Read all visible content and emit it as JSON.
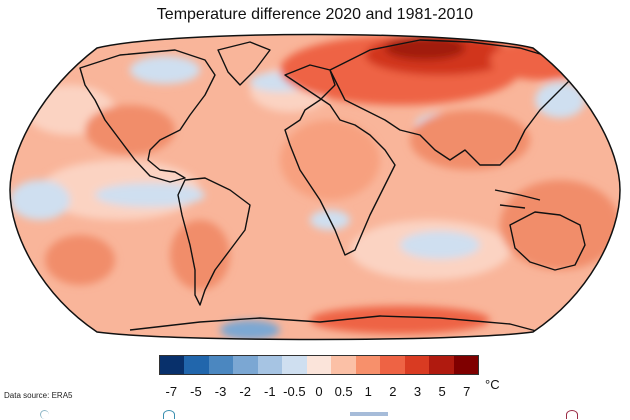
{
  "title": "Temperature difference 2020 and 1981-2010",
  "data_source": "Data source: ERA5",
  "legend": {
    "unit": "°C",
    "tick_labels": [
      "-7",
      "-5",
      "-3",
      "-2",
      "-1",
      "-0.5",
      "0",
      "0.5",
      "1",
      "2",
      "3",
      "5",
      "7"
    ],
    "colors": [
      "#08306b",
      "#2166ac",
      "#4b87c0",
      "#7ba7d3",
      "#a6c4e3",
      "#cfdff0",
      "#fbe4da",
      "#fbc0a6",
      "#f7906b",
      "#ee6344",
      "#d93b22",
      "#b01a0f",
      "#7f0000"
    ]
  },
  "map": {
    "projection": "Robinson",
    "variable": "Temperature difference",
    "palette": {
      "ocean_warm": "#f9b59a",
      "ocean_neutral": "#fbd3c2",
      "cool": "#cfdff0",
      "warm": "#f18d6b",
      "hot": "#d1361c",
      "very_hot": "#a11b10"
    }
  }
}
